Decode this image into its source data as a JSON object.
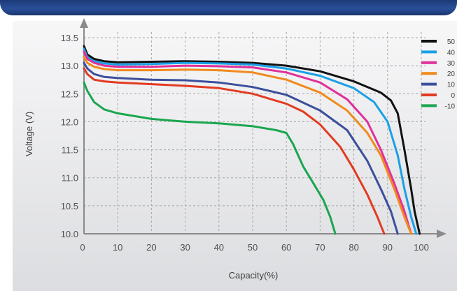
{
  "chart_data": {
    "type": "line",
    "title": "",
    "xlabel": "Capacity(%)",
    "ylabel": "Voltage (V)",
    "xlim": [
      0,
      100
    ],
    "ylim": [
      10.0,
      13.5
    ],
    "grid": true,
    "legend_position": "right",
    "x_ticks": [
      "0",
      "10",
      "20",
      "30",
      "40",
      "50",
      "60",
      "70",
      "80",
      "90",
      "100"
    ],
    "y_ticks": [
      "10.0",
      "10.5",
      "11.0",
      "11.5",
      "12.0",
      "12.5",
      "13.0",
      "13.5"
    ],
    "series": [
      {
        "name": "50",
        "color": "#111111",
        "points": [
          [
            0,
            13.35
          ],
          [
            1,
            13.2
          ],
          [
            3,
            13.12
          ],
          [
            6,
            13.08
          ],
          [
            10,
            13.06
          ],
          [
            20,
            13.07
          ],
          [
            30,
            13.08
          ],
          [
            40,
            13.07
          ],
          [
            50,
            13.05
          ],
          [
            60,
            13.0
          ],
          [
            70,
            12.9
          ],
          [
            80,
            12.72
          ],
          [
            88,
            12.52
          ],
          [
            91,
            12.38
          ],
          [
            93,
            12.15
          ],
          [
            95,
            11.5
          ],
          [
            97,
            10.8
          ],
          [
            98,
            10.4
          ],
          [
            99.5,
            10.0
          ]
        ]
      },
      {
        "name": "40",
        "color": "#1aa0e6",
        "points": [
          [
            0,
            13.3
          ],
          [
            1,
            13.15
          ],
          [
            3,
            13.08
          ],
          [
            6,
            13.04
          ],
          [
            10,
            13.02
          ],
          [
            20,
            13.03
          ],
          [
            30,
            13.05
          ],
          [
            40,
            13.04
          ],
          [
            50,
            13.02
          ],
          [
            60,
            12.95
          ],
          [
            70,
            12.82
          ],
          [
            80,
            12.6
          ],
          [
            86,
            12.35
          ],
          [
            90,
            12.0
          ],
          [
            93,
            11.4
          ],
          [
            95,
            10.8
          ],
          [
            97,
            10.3
          ],
          [
            98.5,
            10.0
          ]
        ]
      },
      {
        "name": "30",
        "color": "#e0309a",
        "points": [
          [
            0,
            13.25
          ],
          [
            1,
            13.12
          ],
          [
            3,
            13.05
          ],
          [
            6,
            13.0
          ],
          [
            10,
            12.98
          ],
          [
            20,
            12.98
          ],
          [
            30,
            13.0
          ],
          [
            40,
            12.99
          ],
          [
            50,
            12.97
          ],
          [
            60,
            12.88
          ],
          [
            70,
            12.7
          ],
          [
            78,
            12.4
          ],
          [
            84,
            12.0
          ],
          [
            88,
            11.5
          ],
          [
            92,
            10.9
          ],
          [
            95,
            10.4
          ],
          [
            97,
            10.0
          ]
        ]
      },
      {
        "name": "20",
        "color": "#f08a1c",
        "points": [
          [
            0,
            13.15
          ],
          [
            1,
            13.05
          ],
          [
            3,
            12.98
          ],
          [
            6,
            12.94
          ],
          [
            10,
            12.92
          ],
          [
            20,
            12.92
          ],
          [
            30,
            12.93
          ],
          [
            40,
            12.92
          ],
          [
            50,
            12.88
          ],
          [
            60,
            12.75
          ],
          [
            70,
            12.52
          ],
          [
            78,
            12.2
          ],
          [
            84,
            11.8
          ],
          [
            88,
            11.4
          ],
          [
            92,
            10.8
          ],
          [
            95,
            10.3
          ],
          [
            97,
            10.0
          ]
        ]
      },
      {
        "name": "10",
        "color": "#3b4f9c",
        "points": [
          [
            0,
            13.05
          ],
          [
            1,
            12.95
          ],
          [
            3,
            12.85
          ],
          [
            6,
            12.8
          ],
          [
            10,
            12.78
          ],
          [
            20,
            12.75
          ],
          [
            30,
            12.74
          ],
          [
            40,
            12.7
          ],
          [
            50,
            12.62
          ],
          [
            60,
            12.48
          ],
          [
            70,
            12.2
          ],
          [
            78,
            11.85
          ],
          [
            84,
            11.3
          ],
          [
            88,
            10.8
          ],
          [
            91,
            10.4
          ],
          [
            93,
            10.0
          ]
        ]
      },
      {
        "name": "0",
        "color": "#e23b22",
        "points": [
          [
            0,
            12.95
          ],
          [
            1,
            12.85
          ],
          [
            3,
            12.75
          ],
          [
            6,
            12.72
          ],
          [
            10,
            12.7
          ],
          [
            20,
            12.67
          ],
          [
            30,
            12.64
          ],
          [
            40,
            12.6
          ],
          [
            50,
            12.5
          ],
          [
            60,
            12.32
          ],
          [
            65,
            12.18
          ],
          [
            70,
            11.95
          ],
          [
            76,
            11.55
          ],
          [
            80,
            11.15
          ],
          [
            84,
            10.7
          ],
          [
            87,
            10.3
          ],
          [
            89,
            10.0
          ]
        ]
      },
      {
        "name": "-10",
        "color": "#1aa64f",
        "points": [
          [
            0,
            12.7
          ],
          [
            1,
            12.55
          ],
          [
            3,
            12.35
          ],
          [
            6,
            12.22
          ],
          [
            10,
            12.15
          ],
          [
            20,
            12.05
          ],
          [
            30,
            12.0
          ],
          [
            40,
            11.97
          ],
          [
            50,
            11.92
          ],
          [
            57,
            11.85
          ],
          [
            60,
            11.8
          ],
          [
            62,
            11.6
          ],
          [
            65,
            11.2
          ],
          [
            68,
            10.9
          ],
          [
            71,
            10.6
          ],
          [
            73,
            10.3
          ],
          [
            74.5,
            10.0
          ]
        ]
      }
    ]
  }
}
